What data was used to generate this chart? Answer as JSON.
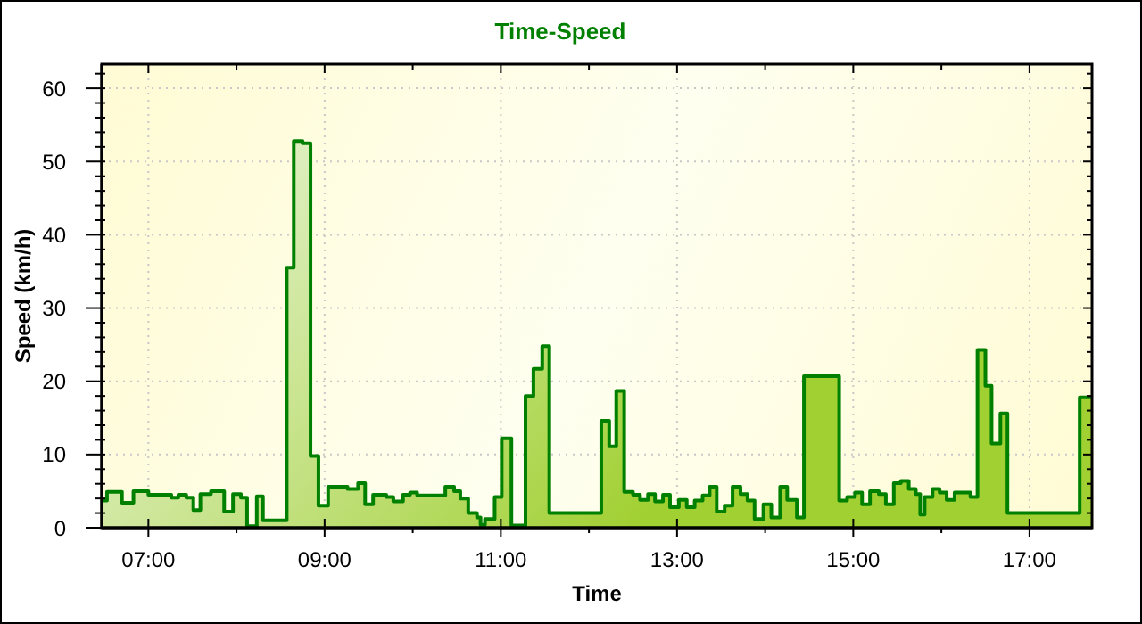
{
  "chart_data": {
    "type": "step",
    "title": "Time-Speed",
    "xlabel": "Time",
    "ylabel": "Speed (km/h)",
    "x": [
      6.47,
      6.53,
      6.7,
      6.83,
      7,
      7.26,
      7.34,
      7.43,
      7.51,
      7.59,
      7.71,
      7.86,
      7.96,
      8.05,
      8.12,
      8.23,
      8.3,
      8.57,
      8.65,
      8.75,
      8.84,
      8.93,
      9.04,
      9.26,
      9.38,
      9.46,
      9.55,
      9.7,
      9.78,
      9.89,
      9.97,
      10.05,
      10.37,
      10.47,
      10.54,
      10.63,
      10.73,
      10.77,
      10.82,
      10.93,
      11.01,
      11.12,
      11.28,
      11.37,
      11.47,
      11.55,
      12.14,
      12.23,
      12.31,
      12.4,
      12.5,
      12.58,
      12.67,
      12.75,
      12.84,
      12.92,
      13.02,
      13.11,
      13.2,
      13.29,
      13.37,
      13.45,
      13.54,
      13.63,
      13.72,
      13.8,
      13.88,
      13.98,
      14.07,
      14.17,
      14.25,
      14.36,
      14.44,
      14.84,
      14.93,
      15.02,
      15.1,
      15.19,
      15.29,
      15.37,
      15.46,
      15.54,
      15.63,
      15.71,
      15.76,
      15.81,
      15.9,
      15.98,
      16.06,
      16.15,
      16.33,
      16.41,
      16.5,
      16.57,
      16.67,
      16.75,
      17.57,
      17.71
    ],
    "series": [
      {
        "color": "#008000",
        "values": [
          3.7,
          4.9,
          3.4,
          5.0,
          4.5,
          4.1,
          4.5,
          4.1,
          2.4,
          4.6,
          5.0,
          2.2,
          4.6,
          4.1,
          0.2,
          4.3,
          1.0,
          35.5,
          52.8,
          52.5,
          9.8,
          3.0,
          5.6,
          5.3,
          6.1,
          3.2,
          4.5,
          4.2,
          3.6,
          4.5,
          4.8,
          4.4,
          5.6,
          5.0,
          4.0,
          2.0,
          1.4,
          0.4,
          1.2,
          4.2,
          12.2,
          0.3,
          18.0,
          21.7,
          24.8,
          2.0,
          14.6,
          11.1,
          18.7,
          4.9,
          4.5,
          3.8,
          4.6,
          3.6,
          4.5,
          2.8,
          3.8,
          2.8,
          3.7,
          4.4,
          5.6,
          2.2,
          3.0,
          5.6,
          4.6,
          3.7,
          1.2,
          3.2,
          1.4,
          5.6,
          3.8,
          1.4,
          20.7,
          3.7,
          4.2,
          4.8,
          3.2,
          5.0,
          4.6,
          3.2,
          6.1,
          6.4,
          5.3,
          4.6,
          1.8,
          4.2,
          5.3,
          4.8,
          3.8,
          4.8,
          4.2,
          24.3,
          19.4,
          11.5,
          15.6,
          2.0,
          17.8,
          17.8
        ]
      }
    ],
    "xlim": [
      6.47,
      17.71
    ],
    "ylim": [
      0,
      63.3
    ],
    "xticks": [
      {
        "value": 7,
        "label": "07:00"
      },
      {
        "value": 8,
        "label": null
      },
      {
        "value": 9,
        "label": "09:00"
      },
      {
        "value": 10,
        "label": null
      },
      {
        "value": 11,
        "label": "11:00"
      },
      {
        "value": 12,
        "label": null
      },
      {
        "value": 13,
        "label": "13:00"
      },
      {
        "value": 14,
        "label": null
      },
      {
        "value": 15,
        "label": "15:00"
      },
      {
        "value": 16,
        "label": null
      },
      {
        "value": 17,
        "label": "17:00"
      }
    ],
    "yticks": [
      0,
      {
        "value": 2,
        "label": null
      },
      {
        "value": 4,
        "label": null
      },
      {
        "value": 6,
        "label": null
      },
      {
        "value": 8,
        "label": null
      },
      10,
      {
        "value": 12,
        "label": null
      },
      {
        "value": 14,
        "label": null
      },
      {
        "value": 16,
        "label": null
      },
      {
        "value": 18,
        "label": null
      },
      20,
      {
        "value": 22,
        "label": null
      },
      {
        "value": 24,
        "label": null
      },
      {
        "value": 26,
        "label": null
      },
      {
        "value": 28,
        "label": null
      },
      30,
      {
        "value": 32,
        "label": null
      },
      {
        "value": 34,
        "label": null
      },
      {
        "value": 36,
        "label": null
      },
      {
        "value": 38,
        "label": null
      },
      40,
      {
        "value": 42,
        "label": null
      },
      {
        "value": 44,
        "label": null
      },
      {
        "value": 46,
        "label": null
      },
      {
        "value": 48,
        "label": null
      },
      50,
      {
        "value": 52,
        "label": null
      },
      {
        "value": 54,
        "label": null
      },
      {
        "value": 56,
        "label": null
      },
      {
        "value": 58,
        "label": null
      },
      60,
      {
        "value": 62,
        "label": null
      }
    ],
    "grid": true
  }
}
